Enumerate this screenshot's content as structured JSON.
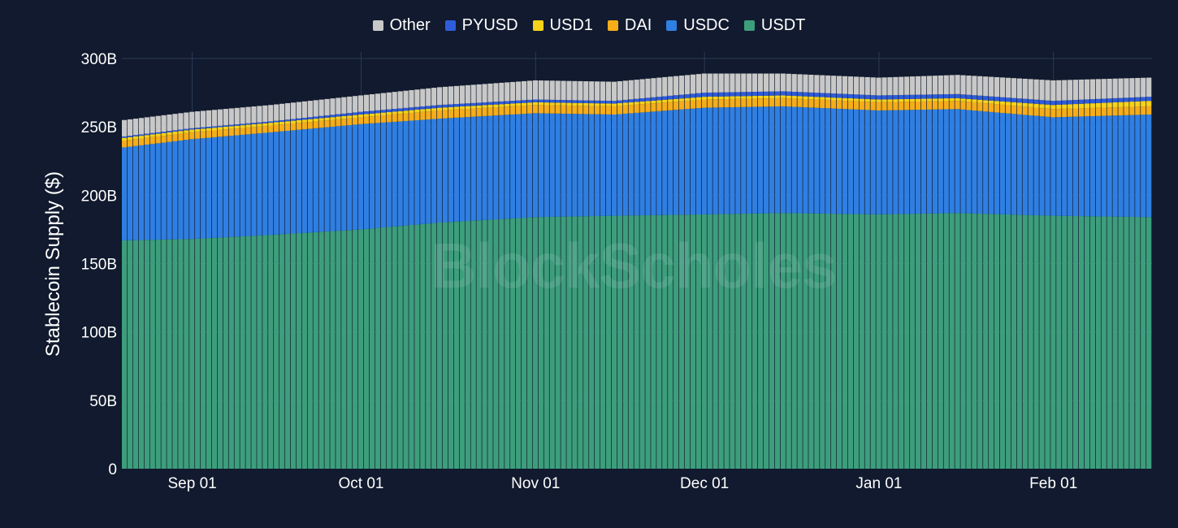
{
  "chart_data": {
    "type": "bar",
    "stacked": true,
    "title": "",
    "xlabel": "",
    "ylabel": "Stablecoin Supply ($)",
    "ylim": [
      0,
      300
    ],
    "y_unit": "B",
    "y_ticks": [
      "0",
      "50B",
      "100B",
      "150B",
      "200B",
      "250B",
      "300B"
    ],
    "x_ticks": [
      {
        "date": "2024-09-01",
        "label": "Sep 01"
      },
      {
        "date": "2024-10-01",
        "label": "Oct 01"
      },
      {
        "date": "2024-11-01",
        "label": "Nov 01"
      },
      {
        "date": "2024-12-01",
        "label": "Dec 01"
      },
      {
        "date": "2025-01-01",
        "label": "Jan 01"
      },
      {
        "date": "2025-02-01",
        "label": "Feb 01"
      }
    ],
    "x_range": [
      "2024-08-20",
      "2025-02-18"
    ],
    "grid": true,
    "legend_position": "top-center",
    "watermark": "BlockScholes",
    "legend_order": [
      "Other",
      "PYUSD",
      "USD1",
      "DAI",
      "USDC",
      "USDT"
    ],
    "series_colors": {
      "USDT": "#3d9e7c",
      "USDC": "#2f7fe3",
      "DAI": "#f5ad1a",
      "USD1": "#f7d21a",
      "PYUSD": "#2e5cdb",
      "Other": "#c8c8c8"
    },
    "keyframes": [
      {
        "date": "2024-08-20",
        "USDT": 167,
        "USDC": 68,
        "DAI": 5,
        "USD1": 2,
        "PYUSD": 1,
        "Other": 12
      },
      {
        "date": "2024-09-01",
        "USDT": 168,
        "USDC": 73,
        "DAI": 5,
        "USD1": 2,
        "PYUSD": 1,
        "Other": 12
      },
      {
        "date": "2024-09-15",
        "USDT": 171,
        "USDC": 75,
        "DAI": 5,
        "USD1": 2,
        "PYUSD": 1,
        "Other": 12
      },
      {
        "date": "2024-10-01",
        "USDT": 175,
        "USDC": 77,
        "DAI": 5,
        "USD1": 2,
        "PYUSD": 2,
        "Other": 12
      },
      {
        "date": "2024-10-15",
        "USDT": 180,
        "USDC": 76,
        "DAI": 6,
        "USD1": 2,
        "PYUSD": 2,
        "Other": 13
      },
      {
        "date": "2024-11-01",
        "USDT": 184,
        "USDC": 76,
        "DAI": 6,
        "USD1": 2,
        "PYUSD": 2,
        "Other": 14
      },
      {
        "date": "2024-11-15",
        "USDT": 185,
        "USDC": 74,
        "DAI": 6,
        "USD1": 2,
        "PYUSD": 2,
        "Other": 14
      },
      {
        "date": "2024-12-01",
        "USDT": 186,
        "USDC": 78,
        "DAI": 6,
        "USD1": 2,
        "PYUSD": 3,
        "Other": 14
      },
      {
        "date": "2024-12-15",
        "USDT": 187,
        "USDC": 78,
        "DAI": 6,
        "USD1": 2,
        "PYUSD": 3,
        "Other": 13
      },
      {
        "date": "2025-01-01",
        "USDT": 186,
        "USDC": 76,
        "DAI": 6,
        "USD1": 2,
        "PYUSD": 3,
        "Other": 13
      },
      {
        "date": "2025-01-15",
        "USDT": 187,
        "USDC": 76,
        "DAI": 6,
        "USD1": 2,
        "PYUSD": 3,
        "Other": 14
      },
      {
        "date": "2025-02-01",
        "USDT": 185,
        "USDC": 72,
        "DAI": 6,
        "USD1": 3,
        "PYUSD": 3,
        "Other": 15
      },
      {
        "date": "2025-02-18",
        "USDT": 184,
        "USDC": 75,
        "DAI": 6,
        "USD1": 4,
        "PYUSD": 3,
        "Other": 14
      }
    ]
  }
}
